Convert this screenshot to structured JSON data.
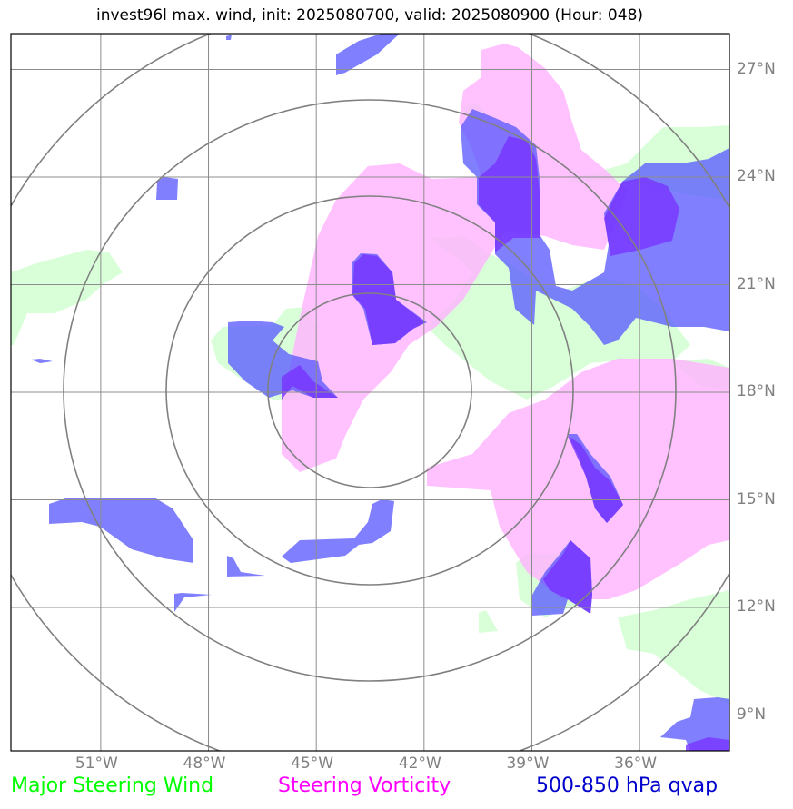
{
  "title": "invest96l max. wind, init: 2025080700, valid: 2025080900 (Hour: 048)",
  "chart_data": {
    "type": "map",
    "storm": "invest96l",
    "init": "2025080700",
    "valid": "2025080900",
    "forecast_hour": "048",
    "extent": {
      "lon": [
        -53.5,
        -33.5
      ],
      "lat": [
        8,
        28
      ]
    },
    "lon_ticks": [
      {
        "value": -51,
        "label": "51°W"
      },
      {
        "value": -48,
        "label": "48°W"
      },
      {
        "value": -45,
        "label": "45°W"
      },
      {
        "value": -42,
        "label": "42°W"
      },
      {
        "value": -39,
        "label": "39°W"
      },
      {
        "value": -36,
        "label": "36°W"
      }
    ],
    "lat_ticks": [
      {
        "value": 27,
        "label": "27°N"
      },
      {
        "value": 24,
        "label": "24°N"
      },
      {
        "value": 21,
        "label": "21°N"
      },
      {
        "value": 18,
        "label": "18°N"
      },
      {
        "value": 15,
        "label": "15°N"
      },
      {
        "value": 12,
        "label": "12°N"
      },
      {
        "value": 9,
        "label": "9°N"
      }
    ],
    "grid": true,
    "range_rings": {
      "center": {
        "lon": -43.5,
        "lat": 18.2
      },
      "count": 4
    },
    "legend": [
      {
        "label": "Major Steering Wind",
        "color": "#00ff00",
        "fill": "#ccffcc"
      },
      {
        "label": "Steering Vorticity",
        "color": "#ff00ff",
        "fill": "#ffb3ff"
      },
      {
        "label": "500-850 hPa qvap",
        "color": "#0000cc",
        "fill": "#5555ff"
      }
    ]
  }
}
